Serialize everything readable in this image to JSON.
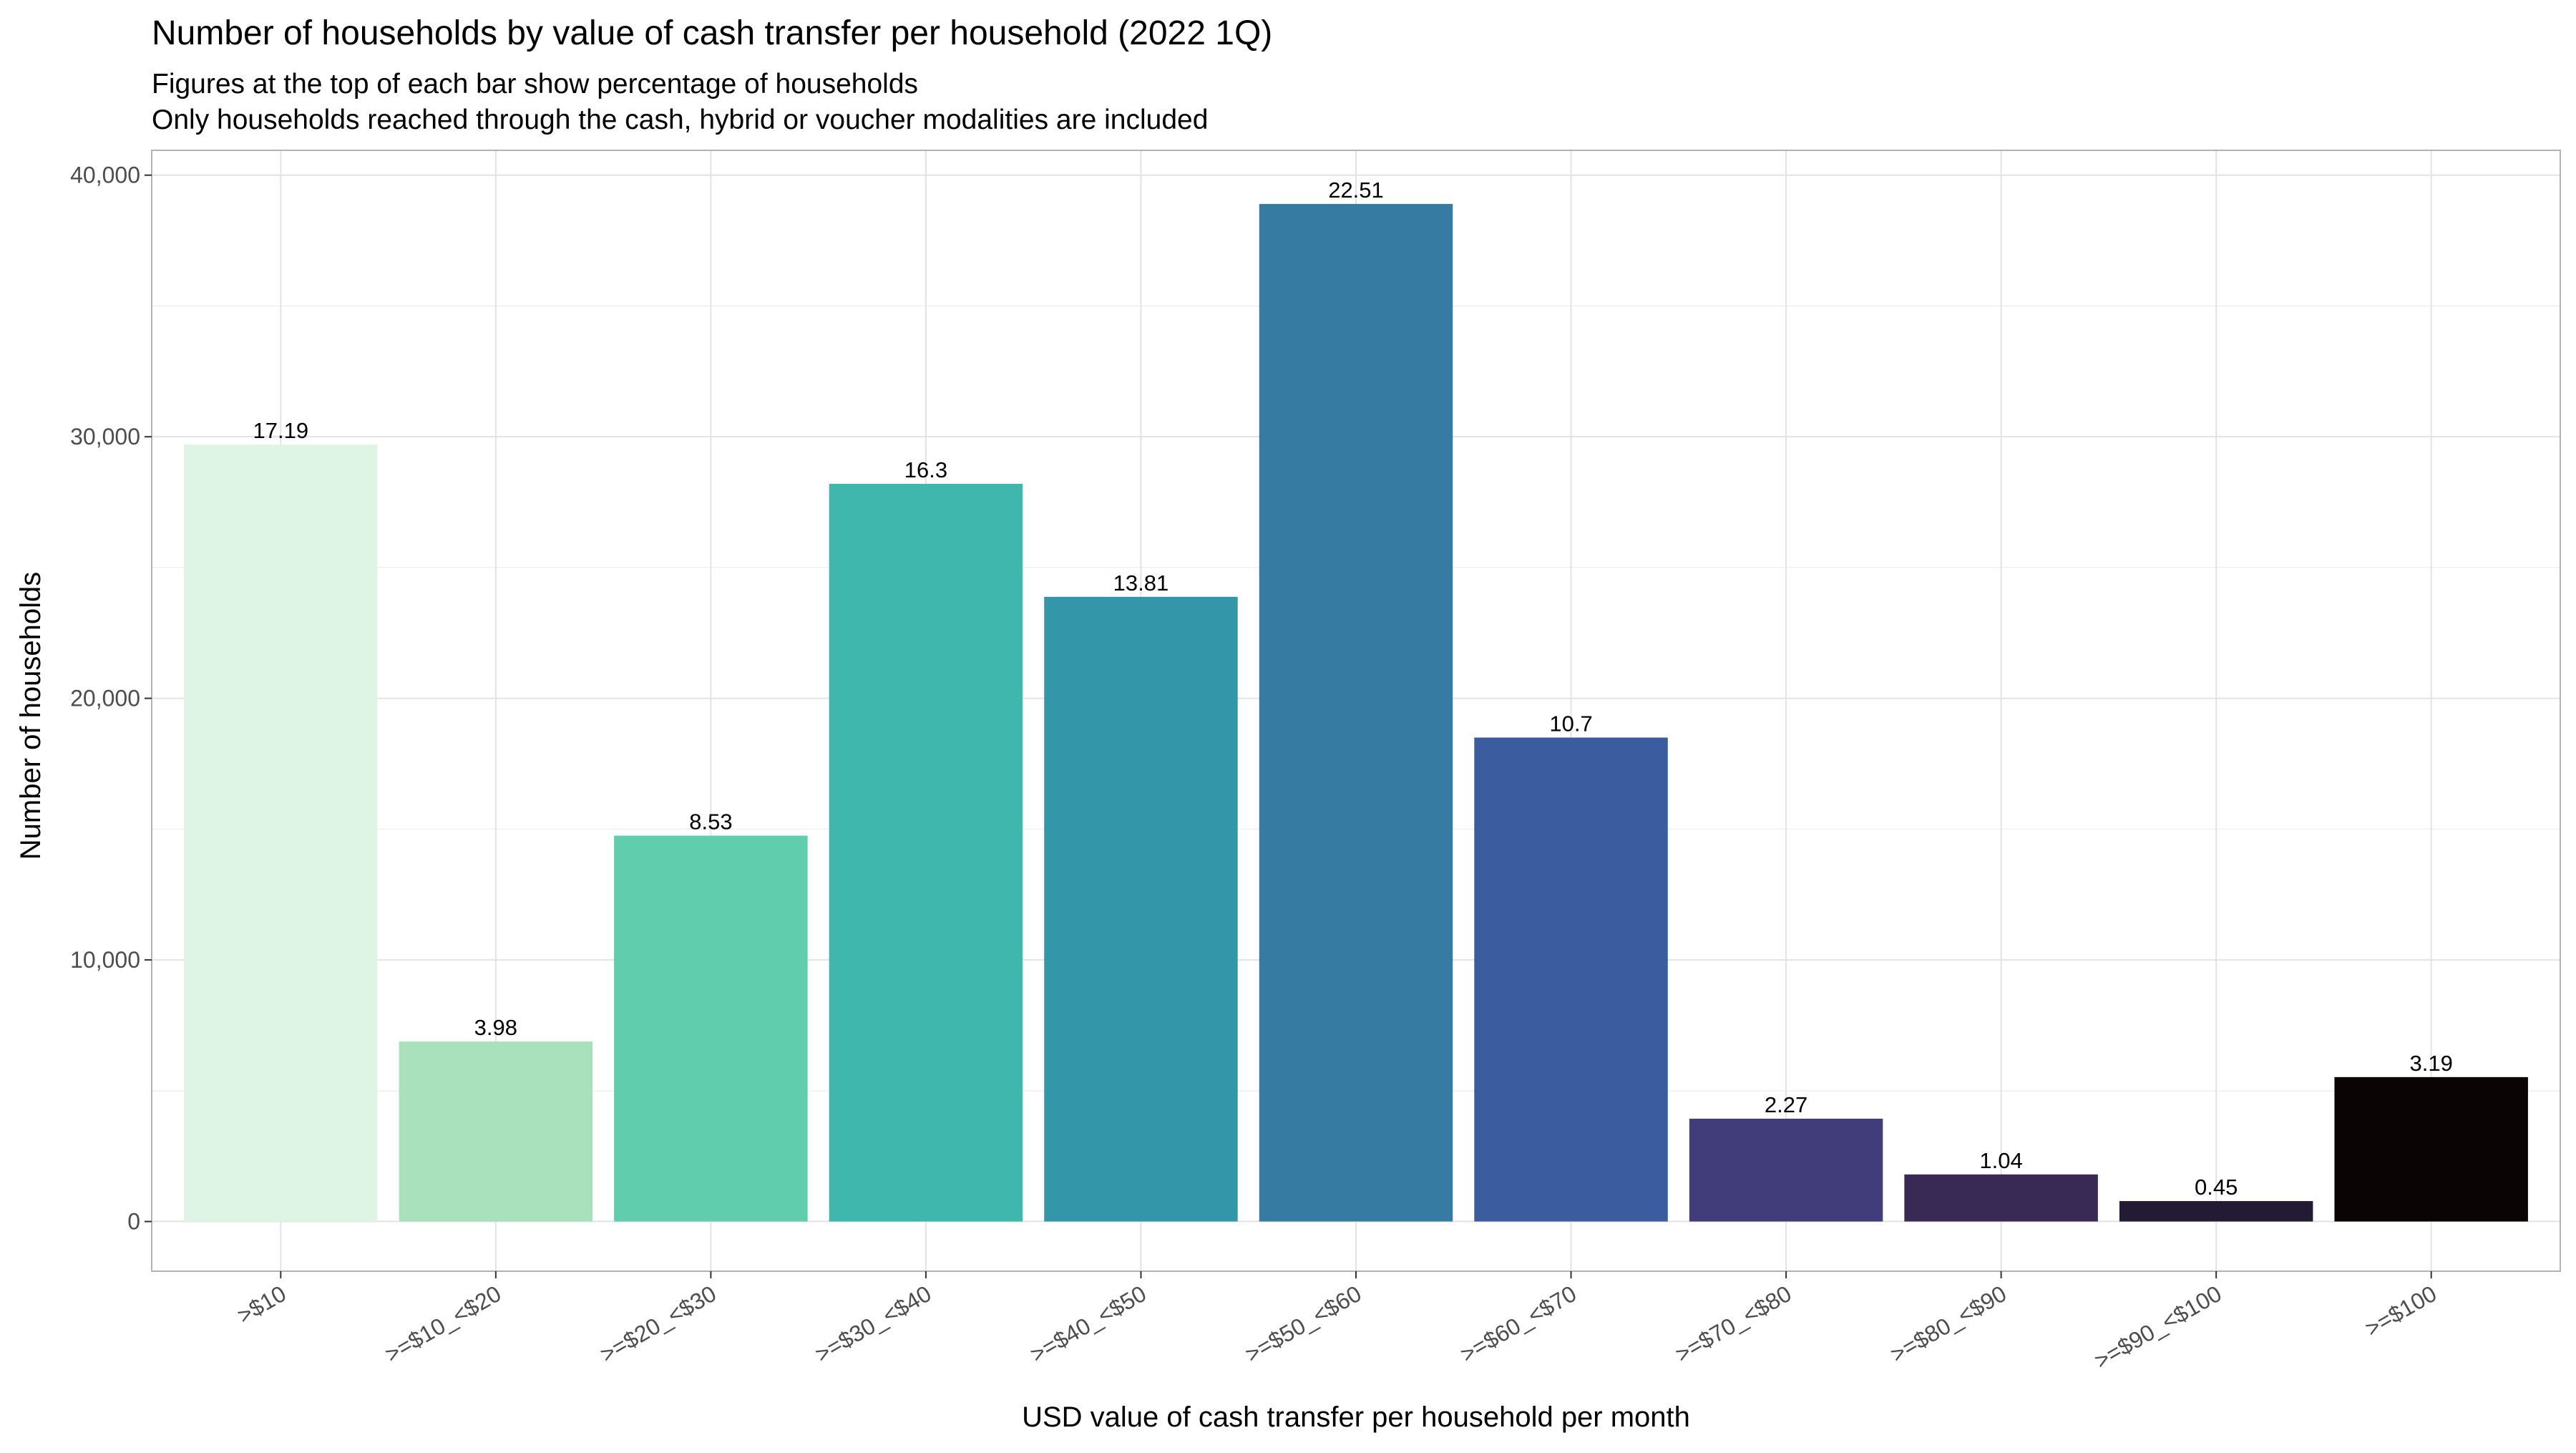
{
  "chart_data": {
    "type": "bar",
    "title": "Number of households by value of cash transfer per household (2022 1Q)",
    "subtitle": [
      "Figures at the top of each bar show percentage of households",
      "Only households reached through the cash, hybrid or voucher modalities are included"
    ],
    "xlabel": "USD value of cash transfer per household per month",
    "ylabel": "Number of households",
    "ylim": [
      -1900,
      40950
    ],
    "yticks": [
      0,
      10000,
      20000,
      30000,
      40000
    ],
    "ytick_labels": [
      "0",
      "10,000",
      "20,000",
      "30,000",
      "40,000"
    ],
    "grid": true,
    "legend": "none",
    "categories": [
      ">$10",
      ">=$10_<$20",
      ">=$20_<$30",
      ">=$30_<$40",
      ">=$40_<$50",
      ">=$50_<$60",
      ">=$60_<$70",
      ">=$70_<$80",
      ">=$80_<$90",
      ">=$90_<$100",
      ">=$100"
    ],
    "values": [
      29700,
      6880,
      14750,
      28200,
      23880,
      38900,
      18500,
      3930,
      1800,
      780,
      5520
    ],
    "data_labels": [
      "17.19",
      "3.98",
      "8.53",
      "16.3",
      "13.81",
      "22.51",
      "10.7",
      "2.27",
      "1.04",
      "0.45",
      "3.19"
    ],
    "colors": [
      "#def5e5",
      "#a8e1bc",
      "#60ceac",
      "#40b7ad",
      "#3497a9",
      "#357ba2",
      "#3b5c9f",
      "#413d7b",
      "#382a54",
      "#231a33",
      "#0b0405"
    ]
  }
}
